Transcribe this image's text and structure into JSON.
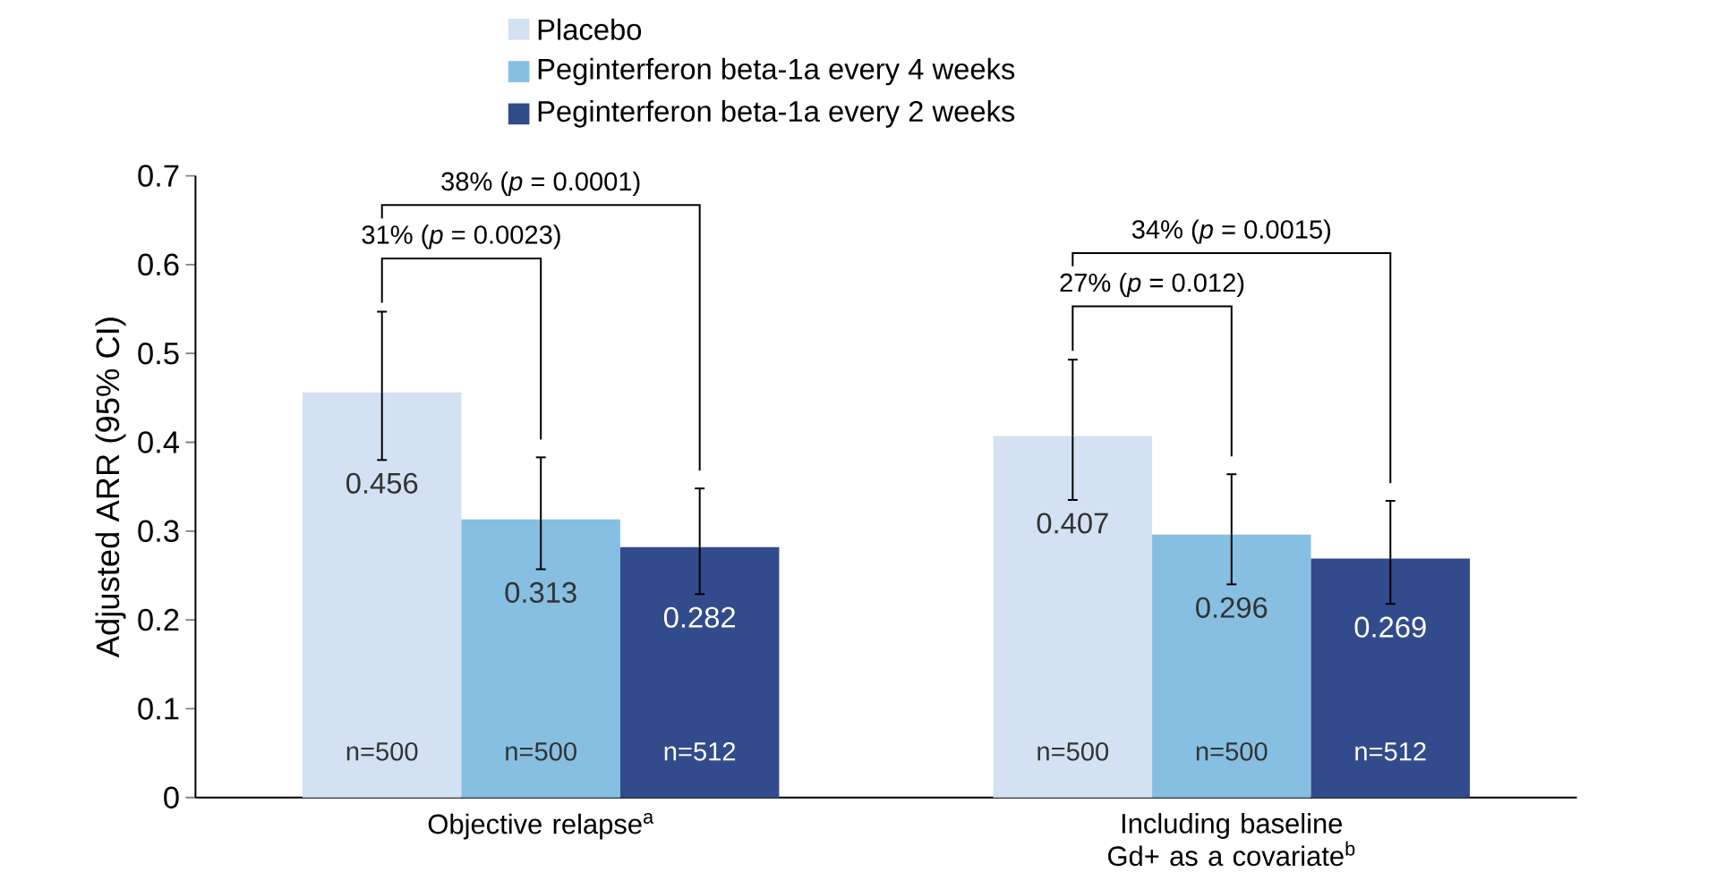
{
  "chart_data": {
    "type": "bar",
    "ylabel": "Adjusted ARR (95% CI)",
    "categories": [
      "Objective relapse$^{a}$",
      "Including baseline Gd+ as a covariate$^{b}$"
    ],
    "series": [
      {
        "name": "Placebo",
        "color": "#d3e1f3",
        "values": [
          0.456,
          0.407
        ],
        "errors": [
          [
            0.38,
            0.547
          ],
          [
            0.335,
            0.493
          ]
        ]
      },
      {
        "name": "Peginterferon beta-1a every 4 weeks",
        "color": "#86bfe2",
        "values": [
          0.313,
          0.296
        ],
        "errors": [
          [
            0.257,
            0.383
          ],
          [
            0.24,
            0.364
          ]
        ]
      },
      {
        "name": "Peginterferon beta-1a every 2 weeks",
        "color": "#324b8c",
        "values": [
          0.282,
          0.269
        ],
        "errors": [
          [
            0.229,
            0.348
          ],
          [
            0.218,
            0.334
          ]
        ]
      }
    ],
    "ylim": [
      0,
      0.7
    ],
    "yticks": [
      0,
      0.1,
      0.2,
      0.3,
      0.4,
      0.5,
      0.6,
      0.7
    ],
    "data_labels": true,
    "legend": "top",
    "grid": false,
    "annotations": [
      "31% (*p* = 0.0023)",
      "38% (*p* = 0.0001)",
      "27% (*p* = 0.012)",
      "34% (*p* = 0.0015)",
      "n=500",
      "n=500",
      "n=512",
      "n=500",
      "n=500",
      "n=512"
    ]
  }
}
